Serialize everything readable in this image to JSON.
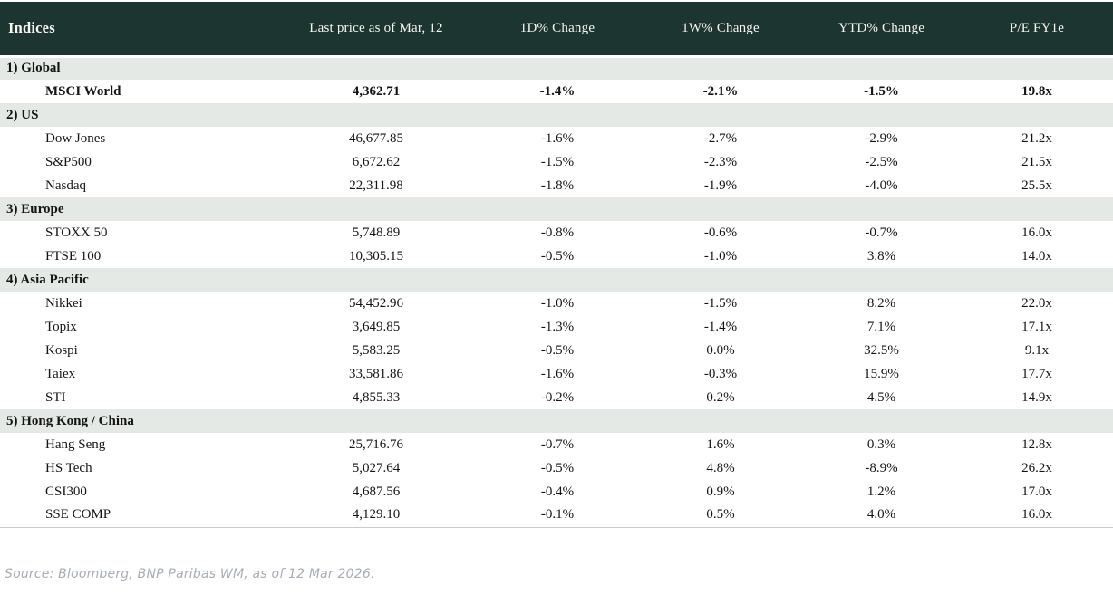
{
  "chart_data": {
    "type": "table",
    "title": "Indices",
    "columns": [
      "Indices",
      "Last price as of Mar, 12",
      "1D% Change",
      "1W% Change",
      "YTD% Change",
      "P/E FY1e"
    ],
    "sections": [
      {
        "label": "1) Global",
        "rows": [
          {
            "name": "MSCI World",
            "last_price": "4,362.71",
            "chg_1d": "-1.4%",
            "chg_1d_color": "negative",
            "chg_1w": "-2.1%",
            "chg_1w_color": "negative",
            "chg_ytd": "-1.5%",
            "chg_ytd_color": "negative",
            "pe_fy1e": "19.8x",
            "bold": true
          }
        ]
      },
      {
        "label": "2) US",
        "rows": [
          {
            "name": "Dow Jones",
            "last_price": "46,677.85",
            "chg_1d": "-1.6%",
            "chg_1d_color": "negative",
            "chg_1w": "-2.7%",
            "chg_1w_color": "negative",
            "chg_ytd": "-2.9%",
            "chg_ytd_color": "negative",
            "pe_fy1e": "21.2x",
            "bold": false
          },
          {
            "name": "S&P500",
            "last_price": "6,672.62",
            "chg_1d": "-1.5%",
            "chg_1d_color": "negative",
            "chg_1w": "-2.3%",
            "chg_1w_color": "negative",
            "chg_ytd": "-2.5%",
            "chg_ytd_color": "negative",
            "pe_fy1e": "21.5x",
            "bold": false
          },
          {
            "name": "Nasdaq",
            "last_price": "22,311.98",
            "chg_1d": "-1.8%",
            "chg_1d_color": "negative",
            "chg_1w": "-1.9%",
            "chg_1w_color": "negative",
            "chg_ytd": "-4.0%",
            "chg_ytd_color": "negative",
            "pe_fy1e": "25.5x",
            "bold": false
          }
        ]
      },
      {
        "label": "3) Europe",
        "rows": [
          {
            "name": "STOXX 50",
            "last_price": "5,748.89",
            "chg_1d": "-0.8%",
            "chg_1d_color": "negative",
            "chg_1w": "-0.6%",
            "chg_1w_color": "negative",
            "chg_ytd": "-0.7%",
            "chg_ytd_color": "negative",
            "pe_fy1e": "16.0x",
            "bold": false
          },
          {
            "name": "FTSE 100",
            "last_price": "10,305.15",
            "chg_1d": "-0.5%",
            "chg_1d_color": "negative",
            "chg_1w": "-1.0%",
            "chg_1w_color": "negative",
            "chg_ytd": "3.8%",
            "chg_ytd_color": "positive",
            "pe_fy1e": "14.0x",
            "bold": false
          }
        ]
      },
      {
        "label": "4) Asia Pacific",
        "rows": [
          {
            "name": "Nikkei",
            "last_price": "54,452.96",
            "chg_1d": "-1.0%",
            "chg_1d_color": "negative",
            "chg_1w": "-1.5%",
            "chg_1w_color": "negative",
            "chg_ytd": "8.2%",
            "chg_ytd_color": "positive",
            "pe_fy1e": "22.0x",
            "bold": false
          },
          {
            "name": "Topix",
            "last_price": "3,649.85",
            "chg_1d": "-1.3%",
            "chg_1d_color": "negative",
            "chg_1w": "-1.4%",
            "chg_1w_color": "negative",
            "chg_ytd": "7.1%",
            "chg_ytd_color": "positive",
            "pe_fy1e": "17.1x",
            "bold": false
          },
          {
            "name": "Kospi",
            "last_price": "5,583.25",
            "chg_1d": "-0.5%",
            "chg_1d_color": "negative",
            "chg_1w": "0.0%",
            "chg_1w_color": "negative",
            "chg_ytd": "32.5%",
            "chg_ytd_color": "positive",
            "pe_fy1e": "9.1x",
            "bold": false
          },
          {
            "name": "Taiex",
            "last_price": "33,581.86",
            "chg_1d": "-1.6%",
            "chg_1d_color": "negative",
            "chg_1w": "-0.3%",
            "chg_1w_color": "negative",
            "chg_ytd": "15.9%",
            "chg_ytd_color": "positive",
            "pe_fy1e": "17.7x",
            "bold": false
          },
          {
            "name": "STI",
            "last_price": "4,855.33",
            "chg_1d": "-0.2%",
            "chg_1d_color": "negative",
            "chg_1w": "0.2%",
            "chg_1w_color": "positive",
            "chg_ytd": "4.5%",
            "chg_ytd_color": "positive",
            "pe_fy1e": "14.9x",
            "bold": false
          }
        ]
      },
      {
        "label": "5) Hong Kong / China",
        "rows": [
          {
            "name": "Hang Seng",
            "last_price": "25,716.76",
            "chg_1d": "-0.7%",
            "chg_1d_color": "negative",
            "chg_1w": "1.6%",
            "chg_1w_color": "positive",
            "chg_ytd": "0.3%",
            "chg_ytd_color": "positive",
            "pe_fy1e": "12.8x",
            "bold": false
          },
          {
            "name": "HS Tech",
            "last_price": "5,027.64",
            "chg_1d": "-0.5%",
            "chg_1d_color": "negative",
            "chg_1w": "4.8%",
            "chg_1w_color": "positive",
            "chg_ytd": "-8.9%",
            "chg_ytd_color": "negative",
            "pe_fy1e": "26.2x",
            "bold": false
          },
          {
            "name": "CSI300",
            "last_price": "4,687.56",
            "chg_1d": "-0.4%",
            "chg_1d_color": "negative",
            "chg_1w": "0.9%",
            "chg_1w_color": "positive",
            "chg_ytd": "1.2%",
            "chg_ytd_color": "positive",
            "pe_fy1e": "17.0x",
            "bold": false
          },
          {
            "name": "SSE COMP",
            "last_price": "4,129.10",
            "chg_1d": "-0.1%",
            "chg_1d_color": "negative",
            "chg_1w": "0.5%",
            "chg_1w_color": "positive",
            "chg_ytd": "4.0%",
            "chg_ytd_color": "positive",
            "pe_fy1e": "16.0x",
            "bold": false
          }
        ]
      }
    ]
  },
  "footer": {
    "source_note": "Source: Bloomberg, BNP Paribas WM, as of 12 Mar 2026."
  },
  "colors": {
    "header_bg": "#1d3530",
    "header_text": "#f7f5ef",
    "section_bg": "#e5e9e5",
    "negative": "#c00a26",
    "positive": "#17803c",
    "text": "#141414",
    "source_text": "#a7aeb6",
    "table_bottom_border": "#c9cdc9"
  }
}
